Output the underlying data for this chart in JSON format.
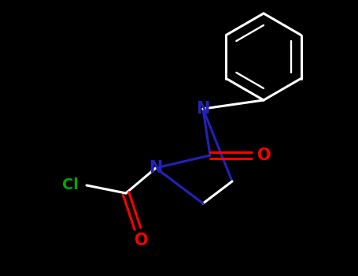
{
  "bg_color": "#000000",
  "bond_color": "#ffffff",
  "N_color": "#2222bb",
  "O_color": "#ff0000",
  "Cl_color": "#00aa00",
  "line_width": 2.2,
  "figsize": [
    4.55,
    3.5
  ],
  "dpi": 100,
  "xlim": [
    0,
    455
  ],
  "ylim": [
    0,
    350
  ]
}
